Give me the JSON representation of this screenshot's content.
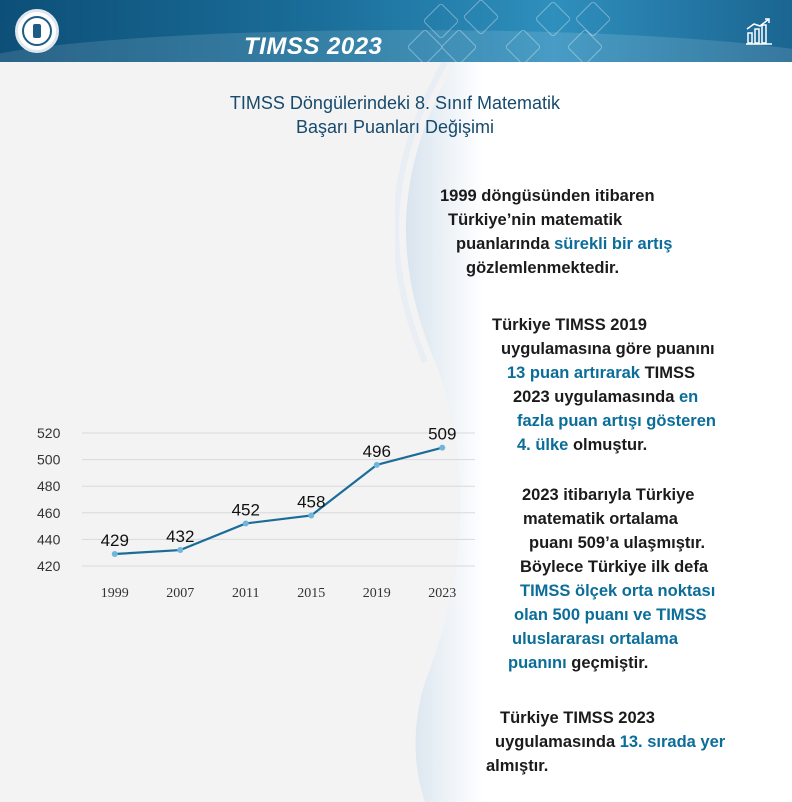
{
  "header": {
    "brand": "TIMSS 2023",
    "logo": "ministry-seal-logo",
    "stats_icon": "bar-chart-icon"
  },
  "chart_title": {
    "line1": "TIMSS Döngülerindeki 8. Sınıf Matematik",
    "line2": "Başarı Puanları Değişimi"
  },
  "chart_data": {
    "type": "line",
    "title": "TIMSS Döngülerindeki 8. Sınıf Matematik Başarı Puanları Değişimi",
    "xlabel": "",
    "ylabel": "",
    "categories": [
      "1999",
      "2007",
      "2011",
      "2015",
      "2019",
      "2023"
    ],
    "values": [
      429,
      432,
      452,
      458,
      496,
      509
    ],
    "data_labels": [
      "429",
      "432",
      "452",
      "458",
      "496",
      "509"
    ],
    "y_ticks": [
      "520",
      "500",
      "480",
      "460",
      "440",
      "420"
    ],
    "ylim": [
      420,
      520
    ],
    "grid": true,
    "line_color": "#1b6c97",
    "point_color": "#6fb6dc"
  },
  "notes": {
    "p1": {
      "l1": "1999 döngüsünden itibaren",
      "l2": "Türkiye’nin matematik",
      "l3a": "puanlarında ",
      "l3b": "sürekli bir artış",
      "l4": "gözlemlenmektedir."
    },
    "p2": {
      "l1": "Türkiye TIMSS 2019",
      "l2": "uygulamasına göre puanını",
      "l3a": "13 puan artırarak",
      "l3b": " TIMSS",
      "l4a": "2023 uygulamasında ",
      "l4b": "en",
      "l5": "fazla puan artışı gösteren",
      "l6a": "4. ülke",
      "l6b": " olmuştur."
    },
    "p3": {
      "l1": "2023 itibarıyla Türkiye",
      "l2": "matematik ortalama",
      "l3": "puanı 509’a ulaşmıştır.",
      "l4": "Böylece Türkiye ilk defa",
      "l5": "TIMSS ölçek orta noktası",
      "l6": "olan 500 puanı ve TIMSS",
      "l7": "uluslararası ortalama",
      "l8a": "puanını",
      "l8b": " geçmiştir."
    },
    "p4": {
      "l1": "Türkiye TIMSS 2023",
      "l2a": "uygulamasında  ",
      "l2b": "13. sırada yer",
      "l3": "almıştır."
    }
  }
}
